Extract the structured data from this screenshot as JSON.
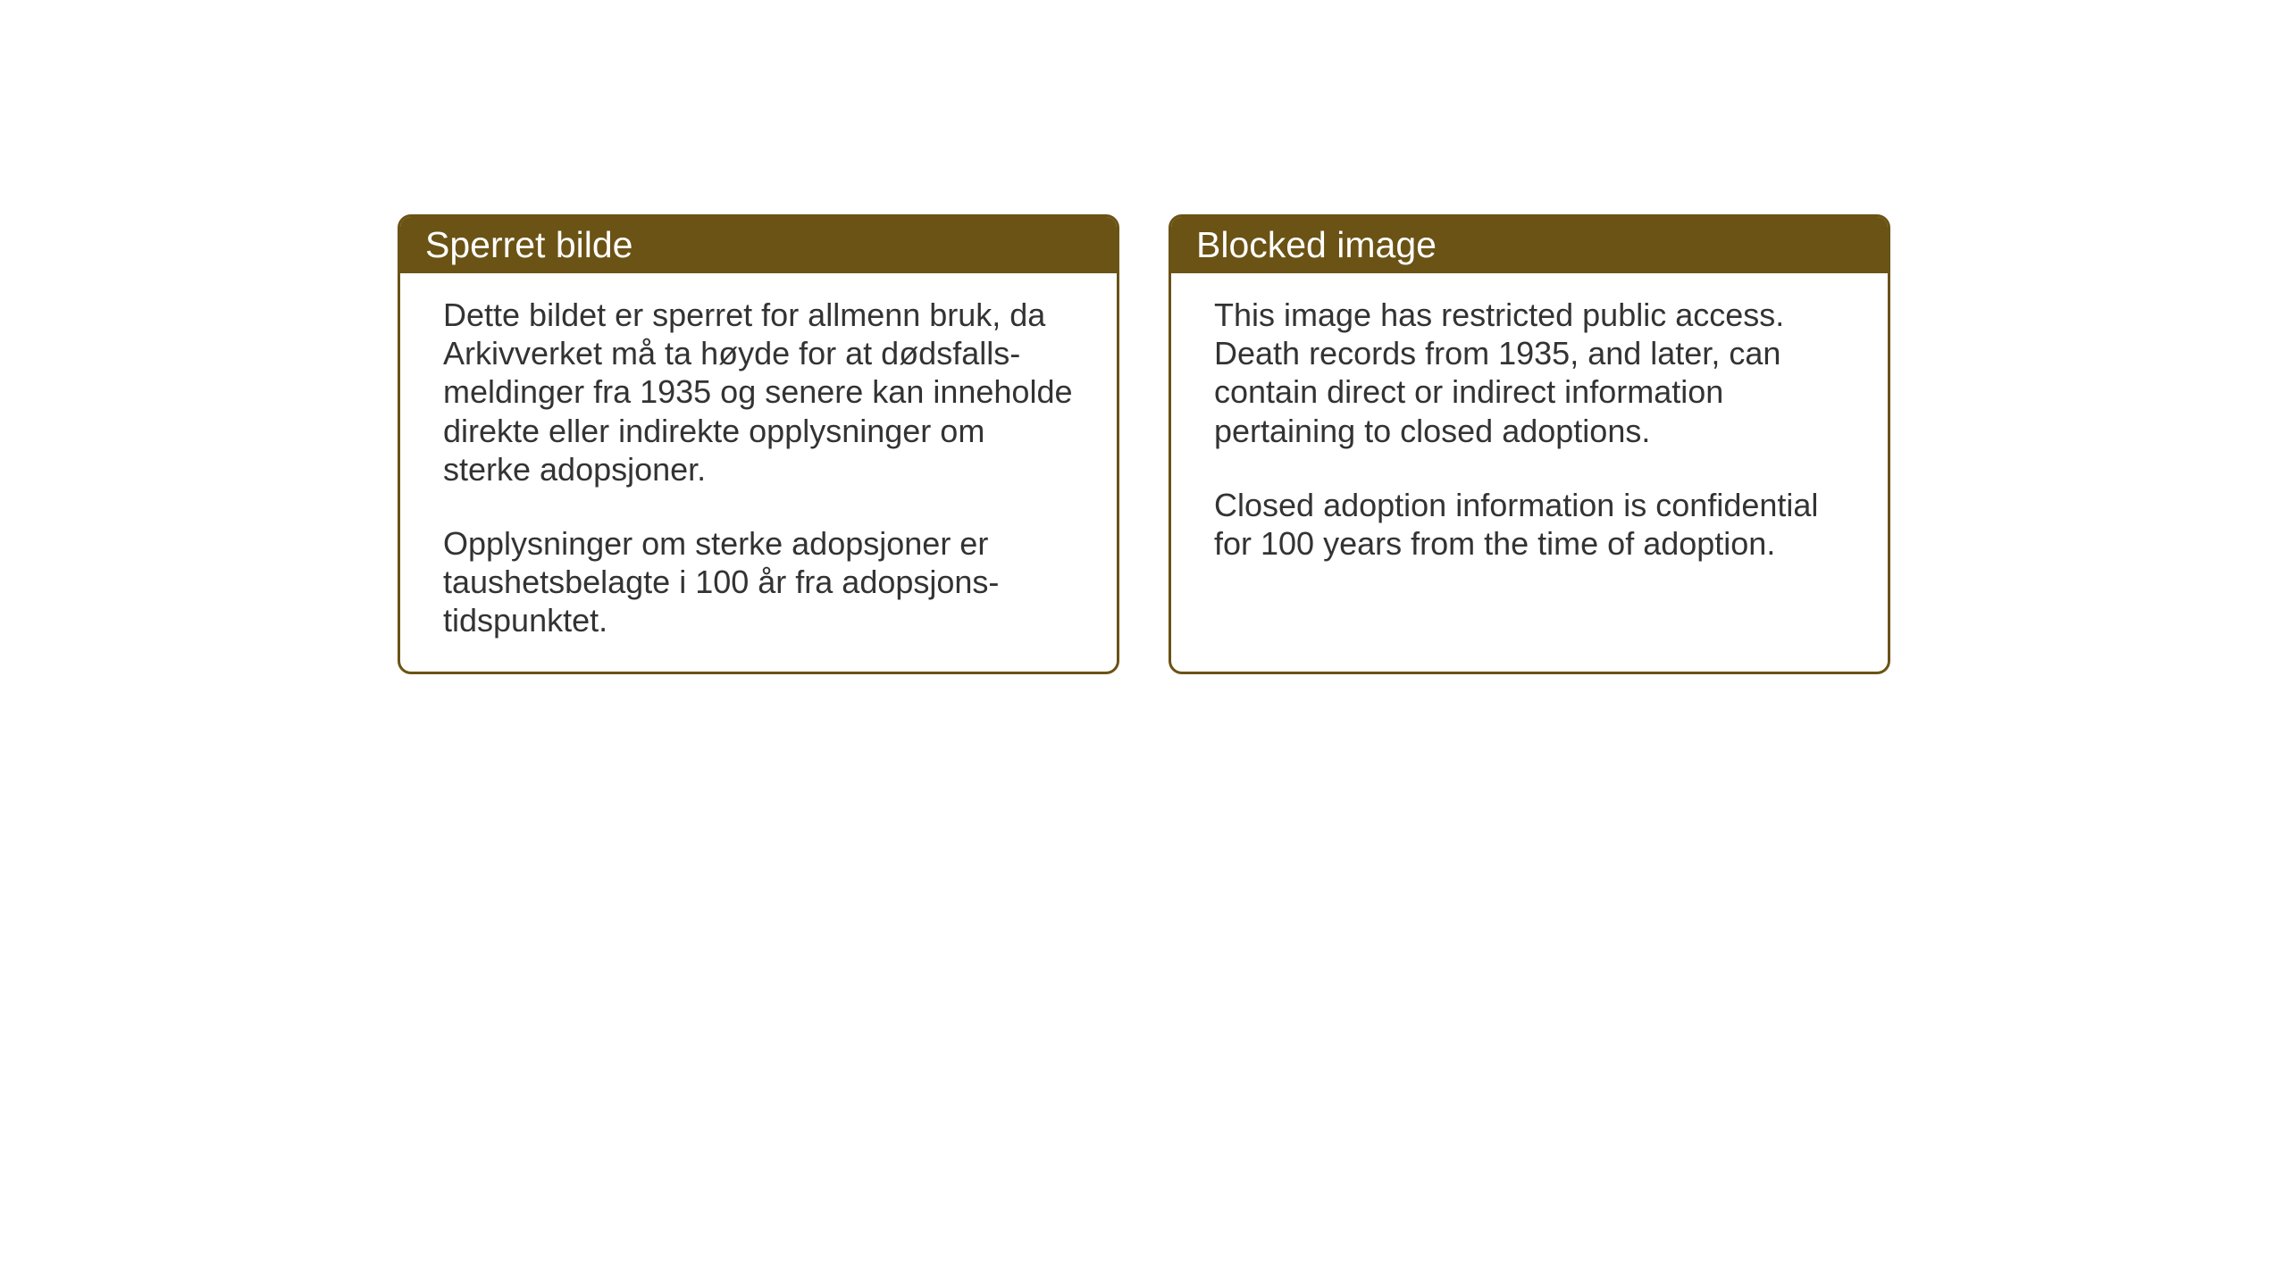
{
  "cards": {
    "left": {
      "title": "Sperret bilde",
      "paragraph1": "Dette bildet er sperret for allmenn bruk, da Arkivverket må ta høyde for at dødsfalls-meldinger fra 1935 og senere kan inneholde direkte eller indirekte opplysninger om sterke adopsjoner.",
      "paragraph2": "Opplysninger om sterke adopsjoner er taushetsbelagte i 100 år fra adopsjons-tidspunktet."
    },
    "right": {
      "title": "Blocked image",
      "paragraph1": "This image has restricted public access. Death records from 1935, and later, can contain direct or indirect information pertaining to closed adoptions.",
      "paragraph2": "Closed adoption information is confidential for 100 years from the time of adoption."
    }
  },
  "styling": {
    "header_background": "#6b5315",
    "header_text_color": "#ffffff",
    "border_color": "#6b5315",
    "body_text_color": "#333333",
    "card_background": "#ffffff",
    "page_background": "#ffffff",
    "header_fontsize": 41,
    "body_fontsize": 36,
    "border_width": 3,
    "border_radius": 15
  }
}
